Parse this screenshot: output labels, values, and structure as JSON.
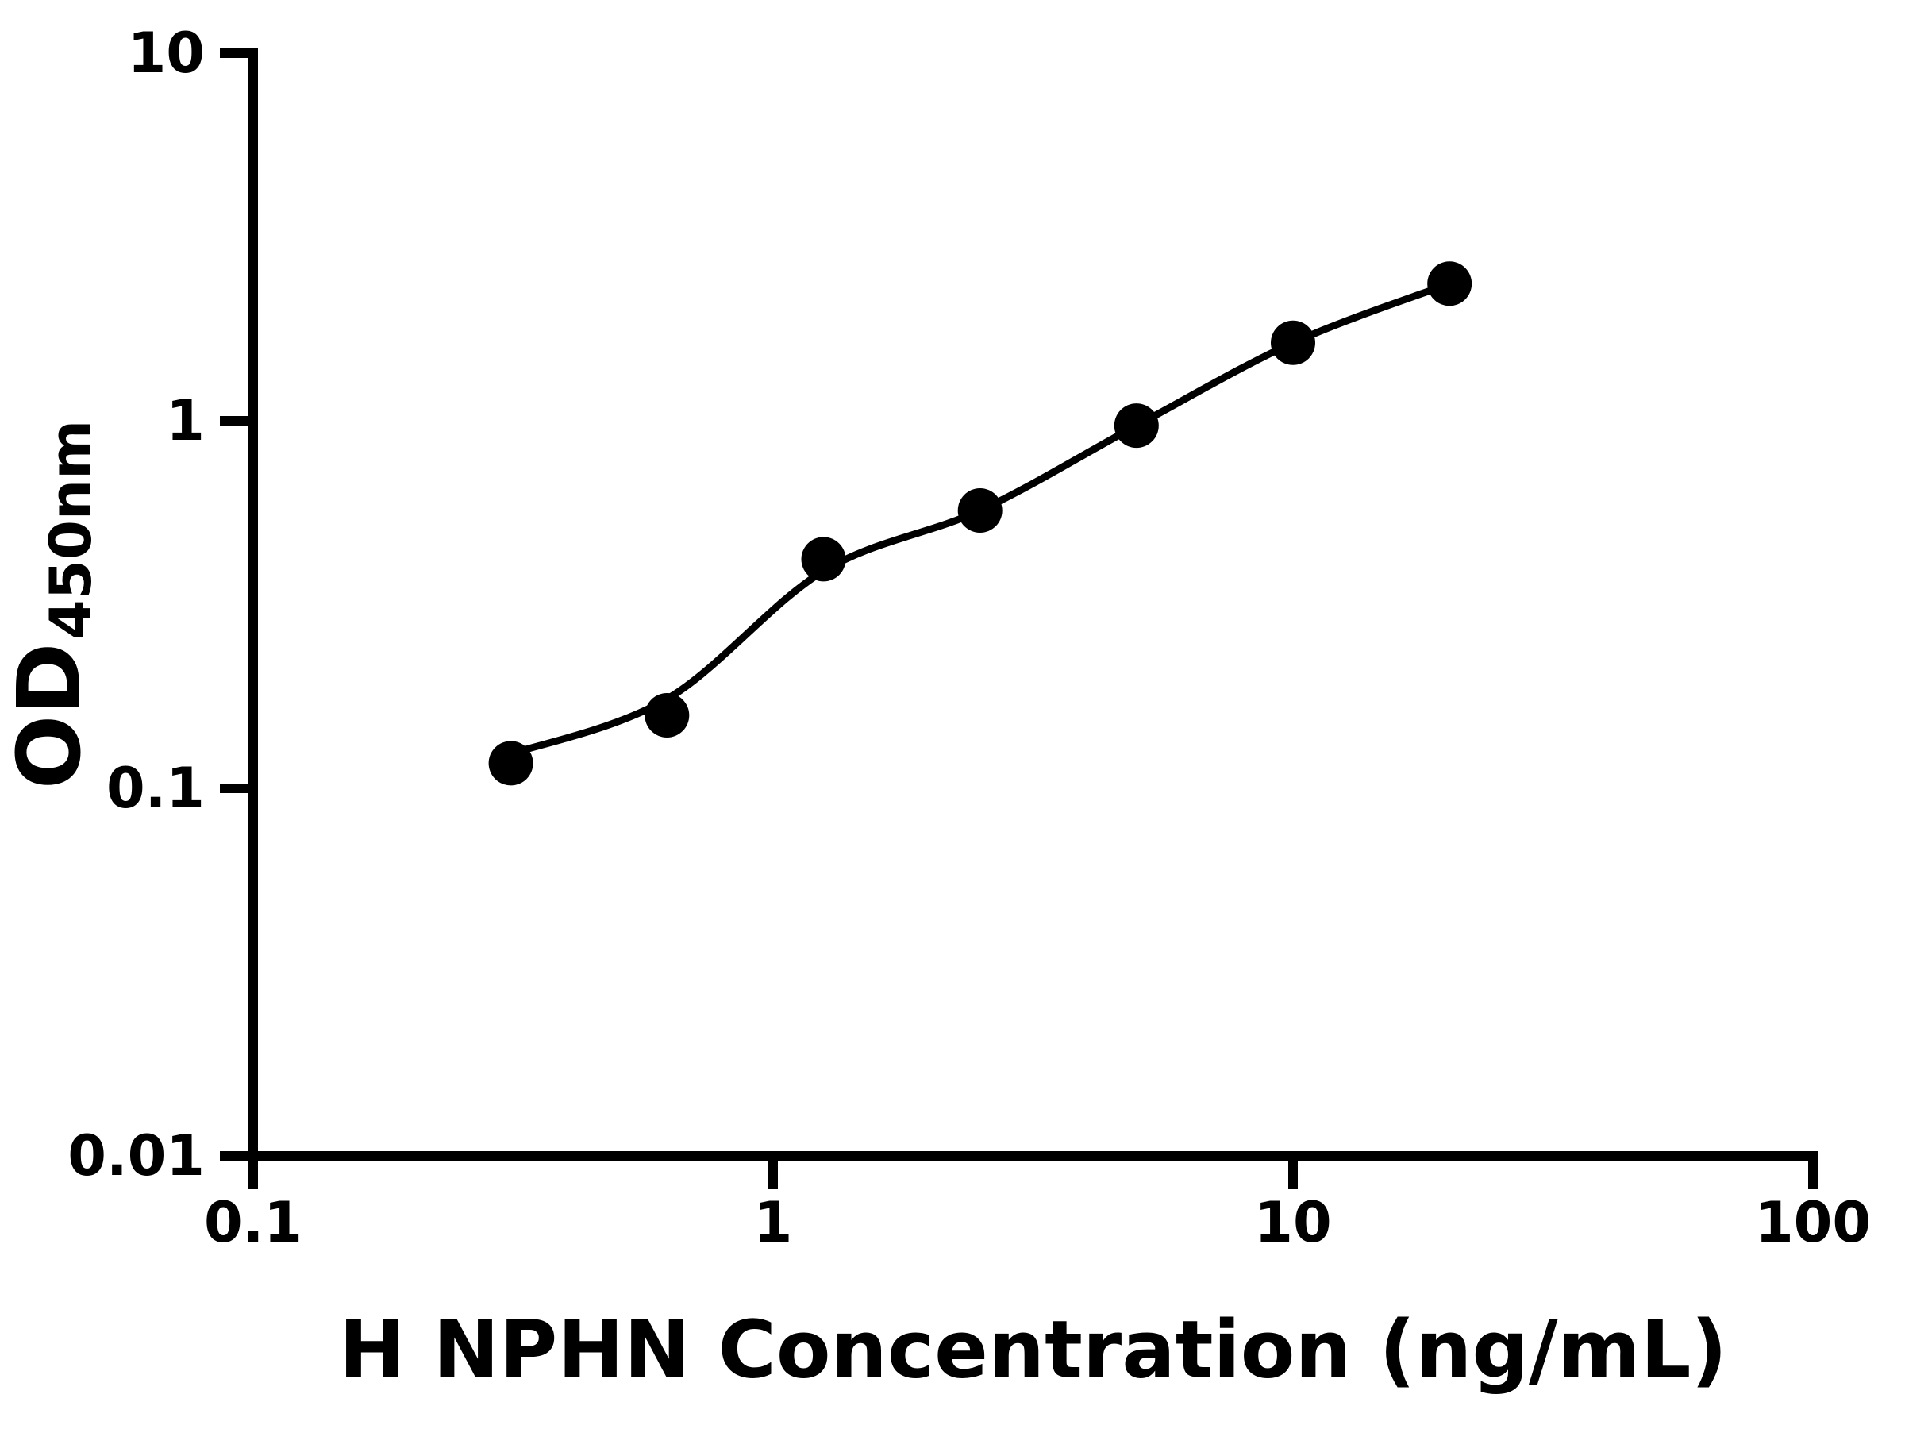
{
  "chart_data": {
    "type": "scatter",
    "xlabel": "H NPHN Concentration (ng/mL)",
    "ylabel": "OD",
    "ylabel_subscript": "450nm",
    "x_scale": "log",
    "y_scale": "log",
    "xlim": [
      0.1,
      100
    ],
    "ylim": [
      0.01,
      10
    ],
    "grid": false,
    "legend": false,
    "x_ticks": [
      {
        "value": 0.1,
        "label": "0.1"
      },
      {
        "value": 1,
        "label": "1"
      },
      {
        "value": 10,
        "label": "10"
      },
      {
        "value": 100,
        "label": "100"
      }
    ],
    "y_ticks": [
      {
        "value": 10,
        "label": "10"
      },
      {
        "value": 1,
        "label": "1"
      },
      {
        "value": 0.1,
        "label": "0.1"
      },
      {
        "value": 0.01,
        "label": "0.01"
      }
    ],
    "series": [
      {
        "marker": "filled-circle",
        "x": [
          0.313,
          0.625,
          1.25,
          2.5,
          5,
          10,
          20
        ],
        "y": [
          0.117,
          0.158,
          0.42,
          0.57,
          0.97,
          1.63,
          2.36
        ]
      }
    ],
    "fit_line": {
      "x": [
        0.313,
        0.625,
        1.25,
        2.5,
        5,
        10,
        20
      ],
      "y": [
        0.124,
        0.175,
        0.39,
        0.57,
        0.97,
        1.63,
        2.36
      ]
    },
    "colors": {
      "marker": "#000000",
      "line": "#000000",
      "axis": "#000000",
      "text": "#000000",
      "background": "#ffffff"
    }
  }
}
